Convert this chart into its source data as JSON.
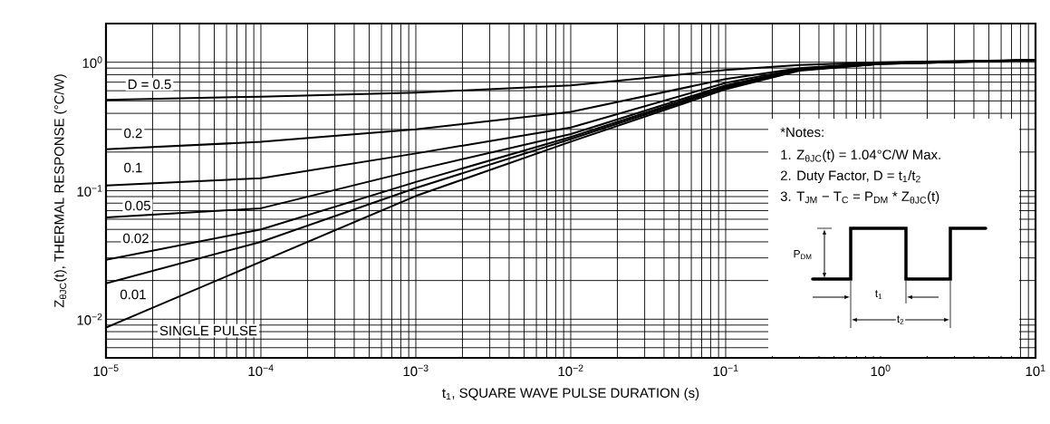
{
  "chart_data": {
    "type": "line",
    "xlabel": "t$_{1}$, SQUARE WAVE PULSE DURATION (s)",
    "ylabel": "Z$_{θJC}$(t), THERMAL RESPONSE (°C/W)",
    "log": "xy",
    "grid": true,
    "line_style": "solid",
    "xlim": [
      1e-05,
      10
    ],
    "ylim": [
      0.005,
      2
    ],
    "xticks": [
      {
        "value": 1e-05,
        "label": "10$^{−5}$"
      },
      {
        "value": 0.0001,
        "label": "10$^{−4}$"
      },
      {
        "value": 0.001,
        "label": "10$^{−3}$"
      },
      {
        "value": 0.01,
        "label": "10$^{−2}$"
      },
      {
        "value": 0.1,
        "label": "10$^{−1}$"
      },
      {
        "value": 1,
        "label": "10$^{0}$"
      },
      {
        "value": 10,
        "label": "10$^{1}$"
      }
    ],
    "yticks": [
      {
        "value": 0.01,
        "label": "10$^{−2}$"
      },
      {
        "value": 0.1,
        "label": "10$^{−1}$"
      },
      {
        "value": 1,
        "label": "10$^{0}$"
      }
    ],
    "x": [
      1e-05,
      0.0001,
      0.001,
      0.01,
      0.1,
      0.3,
      1,
      10
    ],
    "series": [
      {
        "name": "D = 0.5",
        "color": "#000000",
        "values": [
          0.51,
          0.54,
          0.58,
          0.66,
          0.87,
          0.95,
          1.0,
          1.04
        ]
      },
      {
        "name": "0.2",
        "color": "#000000",
        "values": [
          0.21,
          0.24,
          0.3,
          0.41,
          0.74,
          0.9,
          0.99,
          1.04
        ]
      },
      {
        "name": "0.1",
        "color": "#000000",
        "values": [
          0.11,
          0.125,
          0.195,
          0.31,
          0.69,
          0.89,
          0.98,
          1.04
        ]
      },
      {
        "name": "0.05",
        "color": "#000000",
        "values": [
          0.062,
          0.073,
          0.145,
          0.276,
          0.66,
          0.88,
          0.98,
          1.04
        ]
      },
      {
        "name": "0.02",
        "color": "#000000",
        "values": [
          0.029,
          0.05,
          0.117,
          0.262,
          0.645,
          0.87,
          0.97,
          1.04
        ]
      },
      {
        "name": "0.01",
        "color": "#000000",
        "values": [
          0.019,
          0.04,
          0.105,
          0.252,
          0.63,
          0.87,
          0.97,
          1.04
        ]
      },
      {
        "name": "SINGLE PULSE",
        "color": "#000000",
        "values": [
          0.0086,
          0.028,
          0.091,
          0.241,
          0.615,
          0.86,
          0.97,
          1.04
        ]
      }
    ],
    "annotations": [
      "*Notes:",
      "1. Z$_{θJC}$(t) = 1.04°C/W Max.",
      "2. Duty Factor, D = t$_{1}$/t$_{2}$",
      "3. T$_{JM}$ − T$_{C}$ = P$_{DM}$ * Z$_{θJC}$(t)",
      "P$_{DM}$",
      "t$_{1}$",
      "t$_{2}$"
    ]
  }
}
